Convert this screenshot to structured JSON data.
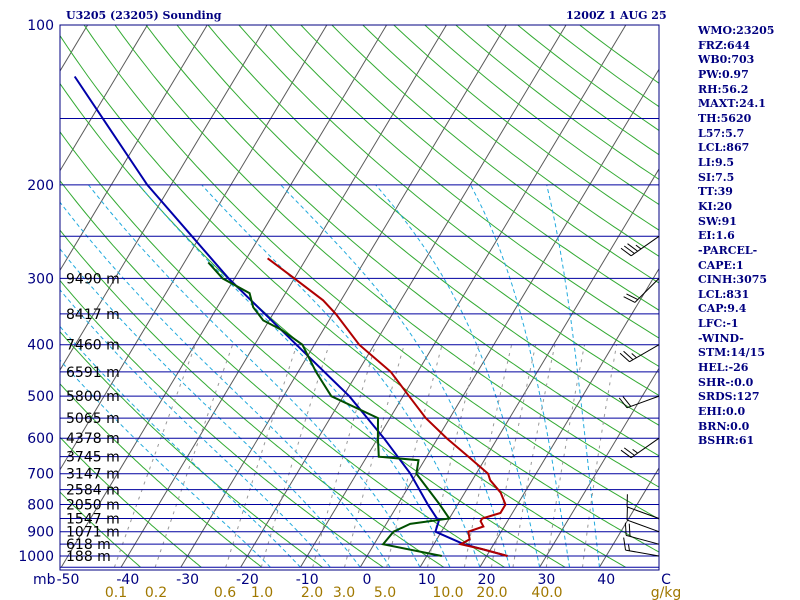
{
  "header": {
    "left": "U3205 (23205) Sounding",
    "right": "1200Z  1 AUG 25"
  },
  "indices": [
    "WMO:23205",
    "FRZ:644",
    "WB0:703",
    "PW:0.97",
    "RH:56.2",
    "MAXT:24.1",
    "TH:5620",
    "L57:5.7",
    "LCL:867",
    "LI:9.5",
    "SI:7.5",
    "TT:39",
    "KI:20",
    "SW:91",
    "EI:1.6",
    "-PARCEL-",
    "CAPE:1",
    "CINH:3075",
    "LCL:831",
    "CAP:9.4",
    "LFC:-1",
    "-WIND-",
    "STM:14/15",
    "HEL:-26",
    "SHR-:0.0",
    "SRDS:127",
    "EHI:0.0",
    "BRN:0.0",
    "BSHR:61"
  ],
  "colors": {
    "frame": "#000080",
    "isobar": "#00009f",
    "isotherm": "#5a5a5a",
    "dry_adiabat": "#33aa33",
    "moist_adiabat": "#22aadd",
    "mixing_ratio": "#999999",
    "temperature": "#b00000",
    "dewpoint": "#005000",
    "parcel": "#0000aa",
    "mixing_label": "#a07800"
  },
  "chart_data": {
    "type": "skew-t",
    "pressure_ticks": [
      100,
      200,
      300,
      400,
      500,
      600,
      700,
      800,
      900,
      1000
    ],
    "temperature_ticks": [
      "-50",
      "-40",
      "-30",
      "-20",
      "-10",
      "0",
      "10",
      "20",
      "30",
      "40",
      "C"
    ],
    "pressure_unit": "mb",
    "mixing_ratio_labels": [
      "0.1",
      "0.2",
      "0.6",
      "1.0",
      "2.0",
      "3.0",
      "5.0",
      "10.0",
      "20.0",
      "40.0",
      "g/kg"
    ],
    "height_labels": [
      {
        "p": 300,
        "label": "9490 m"
      },
      {
        "p": 350,
        "label": "8417 m"
      },
      {
        "p": 400,
        "label": "7460 m"
      },
      {
        "p": 450,
        "label": "6591 m"
      },
      {
        "p": 500,
        "label": "5800 m"
      },
      {
        "p": 550,
        "label": "5065 m"
      },
      {
        "p": 600,
        "label": "4378 m"
      },
      {
        "p": 650,
        "label": "3745 m"
      },
      {
        "p": 700,
        "label": "3147 m"
      },
      {
        "p": 750,
        "label": "2584 m"
      },
      {
        "p": 800,
        "label": "2050 m"
      },
      {
        "p": 850,
        "label": "1547 m"
      },
      {
        "p": 900,
        "label": "1071 m"
      },
      {
        "p": 950,
        "label": "618 m"
      },
      {
        "p": 1000,
        "label": "188 m"
      }
    ],
    "temperature_profile": [
      {
        "p": 1000,
        "t": 23.5
      },
      {
        "p": 970,
        "t": 18.5
      },
      {
        "p": 950,
        "t": 14.5
      },
      {
        "p": 930,
        "t": 15.5
      },
      {
        "p": 900,
        "t": 14.5
      },
      {
        "p": 880,
        "t": 16.5
      },
      {
        "p": 860,
        "t": 15.5
      },
      {
        "p": 850,
        "t": 15.5
      },
      {
        "p": 830,
        "t": 18.0
      },
      {
        "p": 800,
        "t": 18.0
      },
      {
        "p": 760,
        "t": 16.0
      },
      {
        "p": 720,
        "t": 13.0
      },
      {
        "p": 700,
        "t": 12.0
      },
      {
        "p": 650,
        "t": 7.0
      },
      {
        "p": 600,
        "t": 1.5
      },
      {
        "p": 550,
        "t": -4.0
      },
      {
        "p": 500,
        "t": -9.0
      },
      {
        "p": 450,
        "t": -14.5
      },
      {
        "p": 400,
        "t": -22.5
      },
      {
        "p": 350,
        "t": -29.5
      },
      {
        "p": 330,
        "t": -33.0
      },
      {
        "p": 300,
        "t": -40.0
      },
      {
        "p": 275,
        "t": -46.5
      }
    ],
    "dewpoint_profile": [
      {
        "p": 1000,
        "td": 12.5
      },
      {
        "p": 950,
        "td": 1.5
      },
      {
        "p": 900,
        "td": 2.0
      },
      {
        "p": 870,
        "td": 4.0
      },
      {
        "p": 850,
        "td": 10.0
      },
      {
        "p": 800,
        "td": 7.0
      },
      {
        "p": 700,
        "td": 0.0
      },
      {
        "p": 660,
        "td": -1.0
      },
      {
        "p": 650,
        "td": -8.0
      },
      {
        "p": 600,
        "td": -10.0
      },
      {
        "p": 550,
        "td": -12.0
      },
      {
        "p": 500,
        "td": -22.0
      },
      {
        "p": 450,
        "td": -27.0
      },
      {
        "p": 400,
        "td": -32.0
      },
      {
        "p": 375,
        "td": -37.0
      },
      {
        "p": 360,
        "td": -41.0
      },
      {
        "p": 340,
        "td": -44.0
      },
      {
        "p": 320,
        "td": -46.0
      },
      {
        "p": 300,
        "td": -52.0
      },
      {
        "p": 280,
        "td": -56.0
      }
    ],
    "parcel_profile": [
      {
        "p": 1000,
        "t": 23.5
      },
      {
        "p": 950,
        "t": 15.0
      },
      {
        "p": 900,
        "t": 9.0
      },
      {
        "p": 860,
        "t": 8.5
      },
      {
        "p": 800,
        "t": 5.0
      },
      {
        "p": 700,
        "t": -1.0
      },
      {
        "p": 600,
        "t": -9.0
      },
      {
        "p": 500,
        "t": -19.0
      },
      {
        "p": 400,
        "t": -33.0
      },
      {
        "p": 300,
        "t": -51.0
      },
      {
        "p": 200,
        "t": -74.0
      },
      {
        "p": 125,
        "t": -97.0
      }
    ],
    "wind_barbs": [
      {
        "p": 1000,
        "dir": 280,
        "kt": 15
      },
      {
        "p": 950,
        "dir": 285,
        "kt": 20
      },
      {
        "p": 900,
        "dir": 290,
        "kt": 10
      },
      {
        "p": 850,
        "dir": 290,
        "kt": 10
      },
      {
        "p": 600,
        "dir": 235,
        "kt": 25
      },
      {
        "p": 500,
        "dir": 250,
        "kt": 20
      },
      {
        "p": 400,
        "dir": 240,
        "kt": 25
      },
      {
        "p": 300,
        "dir": 225,
        "kt": 20
      },
      {
        "p": 250,
        "dir": 235,
        "kt": 35
      }
    ]
  }
}
